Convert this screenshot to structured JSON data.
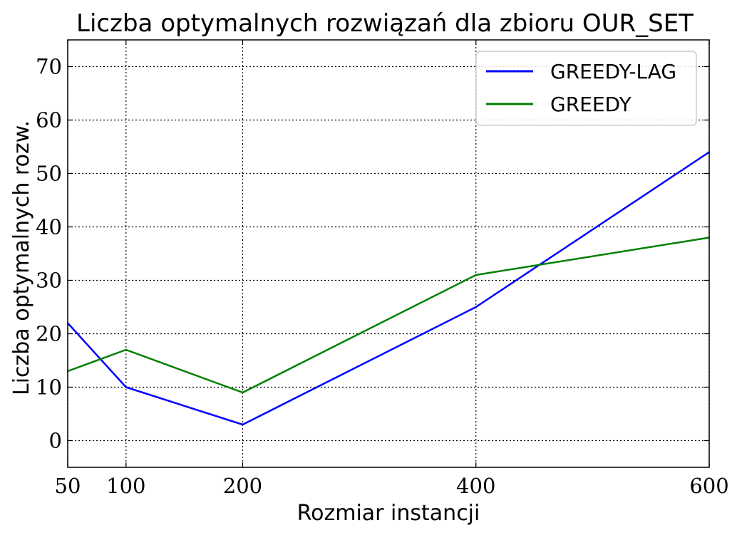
{
  "chart_data": {
    "type": "line",
    "title": "Liczba optymalnych rozwiązań dla zbioru OUR_SET",
    "xlabel": "Rozmiar instancji",
    "ylabel": "Liczba optymalnych rozw.",
    "x": [
      50,
      100,
      200,
      400,
      600
    ],
    "x_ticks": [
      "50",
      "100",
      "200",
      "400",
      "600"
    ],
    "y_ticks": [
      "0",
      "10",
      "20",
      "30",
      "40",
      "50",
      "60",
      "70"
    ],
    "xlim": [
      50,
      600
    ],
    "ylim": [
      -5,
      75
    ],
    "grid": true,
    "legend_position": "top-right",
    "series": [
      {
        "name": "GREEDY-LAG",
        "color": "#0000ff",
        "values": [
          22,
          10,
          3,
          25,
          54
        ]
      },
      {
        "name": "GREEDY",
        "color": "#008000",
        "values": [
          13,
          17,
          9,
          31,
          38
        ]
      }
    ]
  }
}
